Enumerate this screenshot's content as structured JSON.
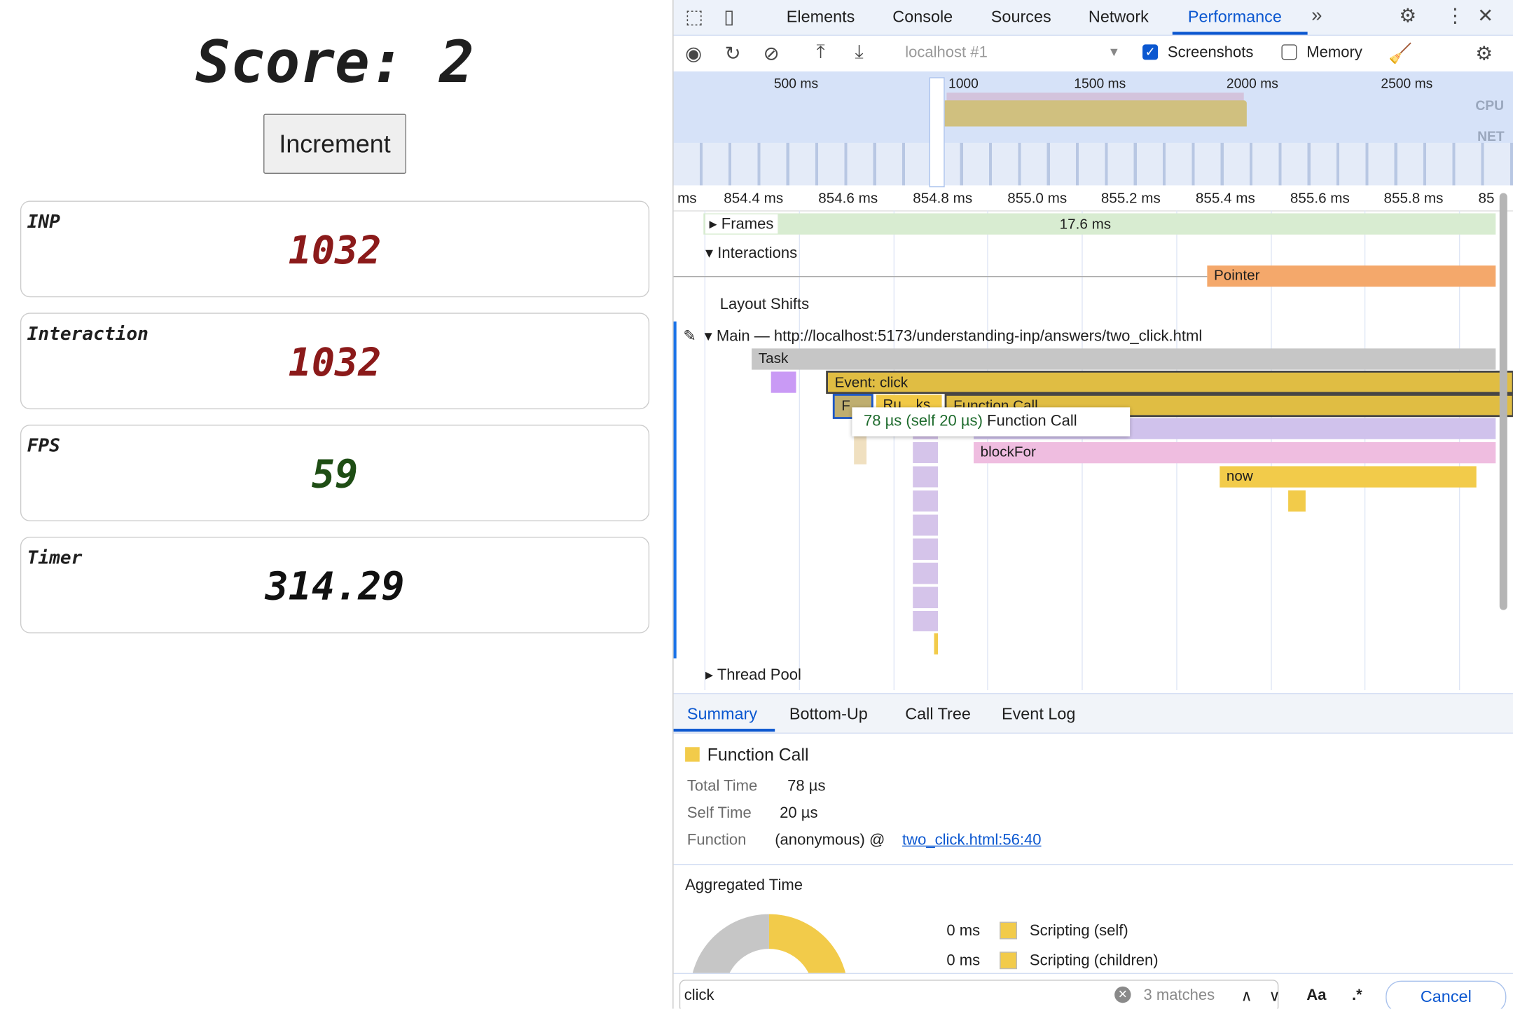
{
  "page": {
    "score_label": "Score: 2",
    "increment_button": "Increment",
    "cards": [
      {
        "label": "INP",
        "value": "1032",
        "color": "#8b1a1a"
      },
      {
        "label": "Interaction",
        "value": "1032",
        "color": "#8b1a1a"
      },
      {
        "label": "FPS",
        "value": "59",
        "color": "#1e4d14"
      },
      {
        "label": "Timer",
        "value": "314.29",
        "color": "#111111"
      }
    ]
  },
  "devtools": {
    "tabs": [
      "Elements",
      "Console",
      "Sources",
      "Network",
      "Performance"
    ],
    "active_tab": "Performance",
    "toolbar": {
      "target": "localhost #1",
      "screenshots_label": "Screenshots",
      "screenshots_checked": true,
      "memory_label": "Memory",
      "memory_checked": false
    },
    "overview": {
      "ticks": [
        "500 ms",
        "1000 ms",
        "1500 ms",
        "2000 ms",
        "2500 ms"
      ],
      "cpu_label": "CPU",
      "net_label": "NET"
    },
    "ruler": [
      "ms",
      "854.4 ms",
      "854.6 ms",
      "854.8 ms",
      "855.0 ms",
      "855.2 ms",
      "855.4 ms",
      "855.6 ms",
      "855.8 ms",
      "85"
    ],
    "tracks": {
      "frames": "Frames",
      "frame_duration": "17.6 ms",
      "interactions": "Interactions",
      "pointer": "Pointer",
      "layout_shifts": "Layout Shifts",
      "main": "Main — http://localhost:5173/understanding-inp/answers/two_click.html",
      "thread_pool": "Thread Pool"
    },
    "flame": {
      "task": "Task",
      "event": "Event: click",
      "f": "F…",
      "ru": "Ru…ks",
      "function_call": "Function Call",
      "blockfor": "blockFor",
      "now": "now"
    },
    "tooltip": {
      "time": "78 µs (self 20 µs)",
      "name": "Function Call"
    },
    "bottom_tabs": [
      "Summary",
      "Bottom-Up",
      "Call Tree",
      "Event Log"
    ],
    "summary": {
      "title": "Function Call",
      "color": "#f2cb4a",
      "rows": [
        {
          "label": "Total Time",
          "value": "78 µs"
        },
        {
          "label": "Self Time",
          "value": "20 µs"
        },
        {
          "label": "Function",
          "value": "(anonymous) @ ",
          "link": "two_click.html:56:40"
        }
      ],
      "aggregated_title": "Aggregated Time",
      "legend": [
        {
          "value": "0 ms",
          "label": "Scripting (self)"
        },
        {
          "value": "0 ms",
          "label": "Scripting (children)"
        }
      ]
    },
    "search": {
      "value": "click",
      "matches": "3 matches",
      "case_label": "Aa",
      "regex_label": ".*",
      "cancel": "Cancel"
    }
  }
}
